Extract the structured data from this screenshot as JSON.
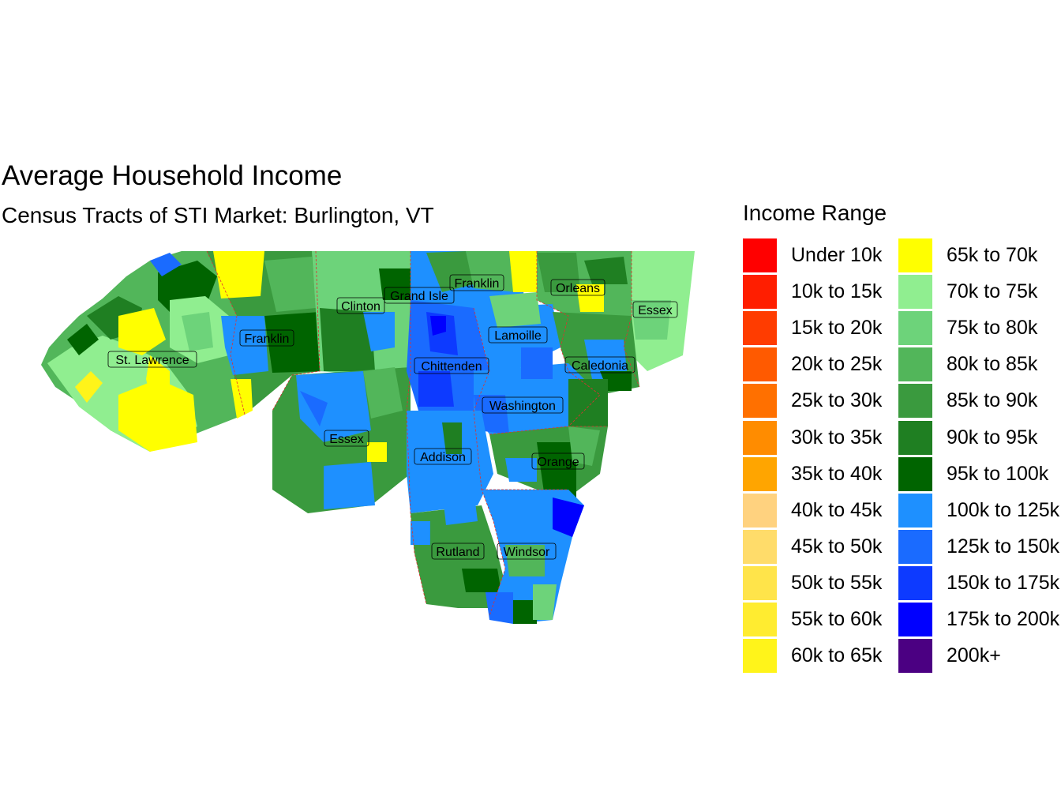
{
  "title": "Average Household Income",
  "subtitle": "Census Tracts of STI Market: Burlington, VT",
  "legend": {
    "title": "Income Range",
    "items": [
      {
        "label": "Under 10k",
        "color": "#FF0000"
      },
      {
        "label": "10k to 15k",
        "color": "#FF1E00"
      },
      {
        "label": "15k to 20k",
        "color": "#FF3C00"
      },
      {
        "label": "20k to 25k",
        "color": "#FF5A00"
      },
      {
        "label": "25k to 30k",
        "color": "#FF7000"
      },
      {
        "label": "30k to 35k",
        "color": "#FF8C00"
      },
      {
        "label": "35k to 40k",
        "color": "#FFA500"
      },
      {
        "label": "40k to 45k",
        "color": "#FFD27F"
      },
      {
        "label": "45k to 50k",
        "color": "#FFDC6A"
      },
      {
        "label": "50k to 55k",
        "color": "#FFE44A"
      },
      {
        "label": "55k to 60k",
        "color": "#FFEC30"
      },
      {
        "label": "60k to 65k",
        "color": "#FFF41A"
      },
      {
        "label": "65k to 70k",
        "color": "#FFFF00"
      },
      {
        "label": "70k to 75k",
        "color": "#90EE90"
      },
      {
        "label": "75k to 80k",
        "color": "#6DD37A"
      },
      {
        "label": "80k to 85k",
        "color": "#52B65A"
      },
      {
        "label": "85k to 90k",
        "color": "#3A9A3E"
      },
      {
        "label": "90k to 95k",
        "color": "#1F7F22"
      },
      {
        "label": "95k to 100k",
        "color": "#006400"
      },
      {
        "label": "100k to 125k",
        "color": "#1E90FF"
      },
      {
        "label": "125k to 150k",
        "color": "#1A6BFF"
      },
      {
        "label": "150k to 175k",
        "color": "#0D3AFF"
      },
      {
        "label": "175k to 200k",
        "color": "#0000FF"
      },
      {
        "label": "200k+",
        "color": "#4B0082"
      }
    ]
  },
  "counties": [
    {
      "name": "Franklin"
    },
    {
      "name": "Grand Isle"
    },
    {
      "name": "Clinton"
    },
    {
      "name": "Orleans"
    },
    {
      "name": "Essex"
    },
    {
      "name": "Lamoille"
    },
    {
      "name": "Franklin"
    },
    {
      "name": "St. Lawrence"
    },
    {
      "name": "Chittenden"
    },
    {
      "name": "Caledonia"
    },
    {
      "name": "Washington"
    },
    {
      "name": "Essex"
    },
    {
      "name": "Addison"
    },
    {
      "name": "Orange"
    },
    {
      "name": "Rutland"
    },
    {
      "name": "Windsor"
    }
  ]
}
